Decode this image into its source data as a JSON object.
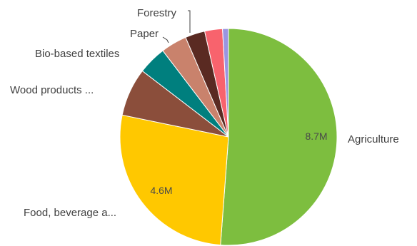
{
  "chart_data": {
    "type": "pie",
    "slices": [
      {
        "category": "Agriculture",
        "value": 8.7,
        "value_label": "8.7M",
        "color": "#7dbe3f",
        "show_value": true
      },
      {
        "category": "Food, beverage a...",
        "value": 4.6,
        "value_label": "4.6M",
        "color": "#ffc800",
        "show_value": true
      },
      {
        "category": "Wood products ...",
        "value": 1.22,
        "value_label": "",
        "color": "#8b4e3b",
        "show_value": false
      },
      {
        "category": "Bio-based textiles",
        "value": 0.72,
        "value_label": "",
        "color": "#007f7e",
        "show_value": false
      },
      {
        "category": "Paper",
        "value": 0.66,
        "value_label": "",
        "color": "#c9826c",
        "show_value": false
      },
      {
        "category": "Forestry",
        "value": 0.5,
        "value_label": "",
        "color": "#5a2a22",
        "show_value": false
      },
      {
        "category": "",
        "value": 0.45,
        "value_label": "",
        "color": "#f8636d",
        "show_value": false
      },
      {
        "category": "",
        "value": 0.15,
        "value_label": "",
        "color": "#9a95e0",
        "show_value": false
      }
    ],
    "start": "top",
    "direction": "clockwise",
    "legend": "none"
  }
}
